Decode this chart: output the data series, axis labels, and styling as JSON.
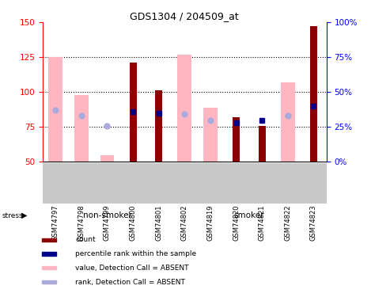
{
  "title": "GDS1304 / 204509_at",
  "samples": [
    "GSM74797",
    "GSM74798",
    "GSM74799",
    "GSM74800",
    "GSM74801",
    "GSM74802",
    "GSM74819",
    "GSM74820",
    "GSM74821",
    "GSM74822",
    "GSM74823"
  ],
  "ylim_left": [
    50,
    150
  ],
  "yticks_left": [
    50,
    75,
    100,
    125,
    150
  ],
  "yticks_right": [
    0,
    25,
    50,
    75,
    100
  ],
  "ytick_labels_right": [
    "0%",
    "25%",
    "50%",
    "75%",
    "100%"
  ],
  "bar_color_dark_red": "#8B0000",
  "bar_color_pink": "#FFB6C1",
  "dot_color_blue": "#00008B",
  "dot_color_light_blue": "#AAAADD",
  "values_pink": [
    125,
    98,
    55,
    null,
    null,
    127,
    89,
    null,
    null,
    107,
    null
  ],
  "values_red": [
    null,
    null,
    null,
    121,
    101,
    null,
    null,
    82,
    76,
    null,
    147
  ],
  "blue_dots": [
    null,
    null,
    null,
    86,
    85,
    null,
    null,
    78,
    80,
    null,
    90
  ],
  "lightblue_dots": [
    87,
    83,
    76,
    null,
    null,
    84,
    80,
    null,
    null,
    83,
    null
  ],
  "nonsmoker_count": 5,
  "green_color": "#7CCD7C",
  "gray_color": "#C8C8C8",
  "legend_items": [
    {
      "color": "#8B0000",
      "label": "count"
    },
    {
      "color": "#00008B",
      "label": "percentile rank within the sample"
    },
    {
      "color": "#FFB6C1",
      "label": "value, Detection Call = ABSENT"
    },
    {
      "color": "#AAAADD",
      "label": "rank, Detection Call = ABSENT"
    }
  ]
}
